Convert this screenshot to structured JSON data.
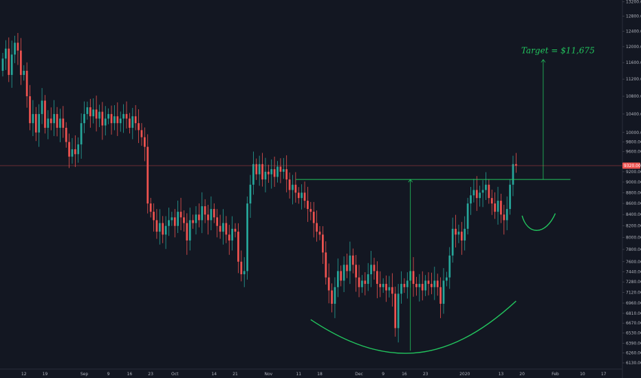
{
  "chart_data": {
    "type": "candlestick",
    "title": "",
    "xlabel": "",
    "ylabel": "",
    "ylim": [
      6050,
      13250
    ],
    "y_scale": "log",
    "grid": false,
    "legend": "none",
    "colors": {
      "up": "#26a69a",
      "down": "#ef5350",
      "annotation": "#22c55e",
      "background": "#131722",
      "text": "#b2b5be"
    },
    "y_ticks": [
      "13200.00",
      "12800.00",
      "12400.00",
      "12000.00",
      "11600.00",
      "11200.00",
      "10800.00",
      "10400.00",
      "10000.00",
      "9800.00",
      "9600.00",
      "9200.00",
      "9000.00",
      "8800.00",
      "8600.00",
      "8400.00",
      "8200.00",
      "8000.00",
      "7800.00",
      "7600.00",
      "7440.00",
      "7280.00",
      "7120.00",
      "6960.00",
      "6810.00",
      "6670.00",
      "6530.00",
      "6390.00",
      "6260.00",
      "6130.00"
    ],
    "x_ticks": [
      "12",
      "19",
      "Sep",
      "9",
      "16",
      "23",
      "Oct",
      "14",
      "21",
      "Nov",
      "11",
      "18",
      "Dec",
      "9",
      "16",
      "23",
      "2020",
      "13",
      "20",
      "Feb",
      "10",
      "17"
    ],
    "x_tick_days": [
      0,
      7,
      20,
      28,
      35,
      42,
      50,
      63,
      70,
      81,
      91,
      98,
      111,
      119,
      126,
      133,
      146,
      158,
      165,
      176,
      185,
      192
    ],
    "last_price": {
      "label": "9320.00",
      "value": 9320
    },
    "annotations": {
      "target_label": "Target = $11,675",
      "target_value": 11675,
      "neckline": 9050,
      "cup_bottom": 6290,
      "handle_bottom": 8150,
      "cup_range_days": [
        95,
        163
      ],
      "handle_range_days": [
        165,
        176
      ],
      "neckline_days": [
        90,
        181
      ],
      "cup_measure_day": 128,
      "target_measure_day": 172
    },
    "candles": [
      {
        "day": -7,
        "open": 11400,
        "close": 11700
      },
      {
        "day": -6,
        "open": 11700,
        "close": 11950
      },
      {
        "day": -5,
        "open": 11950,
        "close": 11300
      },
      {
        "day": -4,
        "open": 11300,
        "close": 11800
      },
      {
        "day": -3,
        "open": 11800,
        "close": 12100
      },
      {
        "day": -2,
        "open": 12100,
        "close": 11900
      },
      {
        "day": -1,
        "open": 11900,
        "close": 11300
      },
      {
        "day": 0,
        "open": 11300,
        "close": 11400
      },
      {
        "day": 1,
        "open": 11400,
        "close": 10800
      },
      {
        "day": 2,
        "open": 10800,
        "close": 10200
      },
      {
        "day": 3,
        "open": 10200,
        "close": 10400
      },
      {
        "day": 4,
        "open": 10400,
        "close": 10000
      },
      {
        "day": 5,
        "open": 10000,
        "close": 10400
      },
      {
        "day": 6,
        "open": 10400,
        "close": 10700
      },
      {
        "day": 7,
        "open": 10700,
        "close": 10100
      },
      {
        "day": 8,
        "open": 10100,
        "close": 10300
      },
      {
        "day": 9,
        "open": 10300,
        "close": 10200
      },
      {
        "day": 10,
        "open": 10200,
        "close": 10400
      },
      {
        "day": 11,
        "open": 10400,
        "close": 10100
      },
      {
        "day": 12,
        "open": 10100,
        "close": 10300
      },
      {
        "day": 13,
        "open": 10300,
        "close": 10100
      },
      {
        "day": 14,
        "open": 10100,
        "close": 9800
      },
      {
        "day": 15,
        "open": 9800,
        "close": 9500
      },
      {
        "day": 16,
        "open": 9500,
        "close": 9650
      },
      {
        "day": 17,
        "open": 9650,
        "close": 9550
      },
      {
        "day": 18,
        "open": 9550,
        "close": 9750
      },
      {
        "day": 19,
        "open": 9750,
        "close": 10200
      },
      {
        "day": 20,
        "open": 10200,
        "close": 10400
      },
      {
        "day": 21,
        "open": 10400,
        "close": 10550
      },
      {
        "day": 22,
        "open": 10550,
        "close": 10350
      },
      {
        "day": 23,
        "open": 10350,
        "close": 10500
      },
      {
        "day": 24,
        "open": 10500,
        "close": 10300
      },
      {
        "day": 25,
        "open": 10300,
        "close": 10450
      },
      {
        "day": 26,
        "open": 10450,
        "close": 10150
      },
      {
        "day": 27,
        "open": 10150,
        "close": 10300
      },
      {
        "day": 28,
        "open": 10300,
        "close": 10400
      },
      {
        "day": 29,
        "open": 10400,
        "close": 10200
      },
      {
        "day": 30,
        "open": 10200,
        "close": 10350
      },
      {
        "day": 31,
        "open": 10350,
        "close": 10200
      },
      {
        "day": 32,
        "open": 10200,
        "close": 10300
      },
      {
        "day": 33,
        "open": 10300,
        "close": 10400
      },
      {
        "day": 34,
        "open": 10400,
        "close": 10300
      },
      {
        "day": 35,
        "open": 10300,
        "close": 10100
      },
      {
        "day": 36,
        "open": 10100,
        "close": 10350
      },
      {
        "day": 37,
        "open": 10350,
        "close": 10200
      },
      {
        "day": 38,
        "open": 10200,
        "close": 10050
      },
      {
        "day": 39,
        "open": 10050,
        "close": 9900
      },
      {
        "day": 40,
        "open": 9900,
        "close": 9700
      },
      {
        "day": 41,
        "open": 9700,
        "close": 8600
      },
      {
        "day": 42,
        "open": 8600,
        "close": 8450
      },
      {
        "day": 43,
        "open": 8450,
        "close": 8300
      },
      {
        "day": 44,
        "open": 8300,
        "close": 8100
      },
      {
        "day": 45,
        "open": 8100,
        "close": 8250
      },
      {
        "day": 46,
        "open": 8250,
        "close": 8050
      },
      {
        "day": 47,
        "open": 8050,
        "close": 8200
      },
      {
        "day": 48,
        "open": 8200,
        "close": 8300
      },
      {
        "day": 49,
        "open": 8300,
        "close": 8350
      },
      {
        "day": 50,
        "open": 8350,
        "close": 8200
      },
      {
        "day": 51,
        "open": 8200,
        "close": 8450
      },
      {
        "day": 52,
        "open": 8450,
        "close": 8350
      },
      {
        "day": 53,
        "open": 8350,
        "close": 8250
      },
      {
        "day": 54,
        "open": 8250,
        "close": 7950
      },
      {
        "day": 55,
        "open": 7950,
        "close": 8300
      },
      {
        "day": 56,
        "open": 8300,
        "close": 8250
      },
      {
        "day": 57,
        "open": 8250,
        "close": 8400
      },
      {
        "day": 58,
        "open": 8400,
        "close": 8300
      },
      {
        "day": 59,
        "open": 8300,
        "close": 8550
      },
      {
        "day": 60,
        "open": 8550,
        "close": 8400
      },
      {
        "day": 61,
        "open": 8400,
        "close": 8300
      },
      {
        "day": 62,
        "open": 8300,
        "close": 8500
      },
      {
        "day": 63,
        "open": 8500,
        "close": 8350
      },
      {
        "day": 64,
        "open": 8350,
        "close": 8200
      },
      {
        "day": 65,
        "open": 8200,
        "close": 8100
      },
      {
        "day": 66,
        "open": 8100,
        "close": 8250
      },
      {
        "day": 67,
        "open": 8250,
        "close": 8050
      },
      {
        "day": 68,
        "open": 8050,
        "close": 7950
      },
      {
        "day": 69,
        "open": 7950,
        "close": 8150
      },
      {
        "day": 70,
        "open": 8150,
        "close": 8100
      },
      {
        "day": 71,
        "open": 8100,
        "close": 7600
      },
      {
        "day": 72,
        "open": 7600,
        "close": 7400
      },
      {
        "day": 73,
        "open": 7400,
        "close": 7450
      },
      {
        "day": 74,
        "open": 7450,
        "close": 8600
      },
      {
        "day": 75,
        "open": 8600,
        "close": 8950
      },
      {
        "day": 76,
        "open": 8950,
        "close": 9350
      },
      {
        "day": 77,
        "open": 9350,
        "close": 9150
      },
      {
        "day": 78,
        "open": 9150,
        "close": 9350
      },
      {
        "day": 79,
        "open": 9350,
        "close": 9050
      },
      {
        "day": 80,
        "open": 9050,
        "close": 9200
      },
      {
        "day": 81,
        "open": 9200,
        "close": 9150
      },
      {
        "day": 82,
        "open": 9150,
        "close": 9250
      },
      {
        "day": 83,
        "open": 9250,
        "close": 9100
      },
      {
        "day": 84,
        "open": 9100,
        "close": 9300
      },
      {
        "day": 85,
        "open": 9300,
        "close": 9200
      },
      {
        "day": 86,
        "open": 9200,
        "close": 9250
      },
      {
        "day": 87,
        "open": 9250,
        "close": 9050
      },
      {
        "day": 88,
        "open": 9050,
        "close": 8850
      },
      {
        "day": 89,
        "open": 8850,
        "close": 8950
      },
      {
        "day": 90,
        "open": 8950,
        "close": 8800
      },
      {
        "day": 91,
        "open": 8800,
        "close": 8700
      },
      {
        "day": 92,
        "open": 8700,
        "close": 8800
      },
      {
        "day": 93,
        "open": 8800,
        "close": 8650
      },
      {
        "day": 94,
        "open": 8650,
        "close": 8500
      },
      {
        "day": 95,
        "open": 8500,
        "close": 8450
      },
      {
        "day": 96,
        "open": 8450,
        "close": 8250
      },
      {
        "day": 97,
        "open": 8250,
        "close": 8100
      },
      {
        "day": 98,
        "open": 8100,
        "close": 8050
      },
      {
        "day": 99,
        "open": 8050,
        "close": 7750
      },
      {
        "day": 100,
        "open": 7750,
        "close": 7350
      },
      {
        "day": 101,
        "open": 7350,
        "close": 7150
      },
      {
        "day": 102,
        "open": 7150,
        "close": 6950
      },
      {
        "day": 103,
        "open": 6950,
        "close": 7200
      },
      {
        "day": 104,
        "open": 7200,
        "close": 7450
      },
      {
        "day": 105,
        "open": 7450,
        "close": 7300
      },
      {
        "day": 106,
        "open": 7300,
        "close": 7550
      },
      {
        "day": 107,
        "open": 7550,
        "close": 7450
      },
      {
        "day": 108,
        "open": 7450,
        "close": 7700
      },
      {
        "day": 109,
        "open": 7700,
        "close": 7550
      },
      {
        "day": 110,
        "open": 7550,
        "close": 7350
      },
      {
        "day": 111,
        "open": 7350,
        "close": 7200
      },
      {
        "day": 112,
        "open": 7200,
        "close": 7300
      },
      {
        "day": 113,
        "open": 7300,
        "close": 7250
      },
      {
        "day": 114,
        "open": 7250,
        "close": 7400
      },
      {
        "day": 115,
        "open": 7400,
        "close": 7550
      },
      {
        "day": 116,
        "open": 7550,
        "close": 7450
      },
      {
        "day": 117,
        "open": 7450,
        "close": 7250
      },
      {
        "day": 118,
        "open": 7250,
        "close": 7200
      },
      {
        "day": 119,
        "open": 7200,
        "close": 7250
      },
      {
        "day": 120,
        "open": 7250,
        "close": 7150
      },
      {
        "day": 121,
        "open": 7150,
        "close": 7200
      },
      {
        "day": 122,
        "open": 7200,
        "close": 7100
      },
      {
        "day": 123,
        "open": 7100,
        "close": 6600
      },
      {
        "day": 124,
        "open": 6600,
        "close": 7100
      },
      {
        "day": 125,
        "open": 7100,
        "close": 7250
      },
      {
        "day": 126,
        "open": 7250,
        "close": 7200
      },
      {
        "day": 127,
        "open": 7200,
        "close": 7300
      },
      {
        "day": 128,
        "open": 7300,
        "close": 7450
      },
      {
        "day": 129,
        "open": 7450,
        "close": 7250
      },
      {
        "day": 130,
        "open": 7250,
        "close": 7200
      },
      {
        "day": 131,
        "open": 7200,
        "close": 7250
      },
      {
        "day": 132,
        "open": 7250,
        "close": 7150
      },
      {
        "day": 133,
        "open": 7150,
        "close": 7300
      },
      {
        "day": 134,
        "open": 7300,
        "close": 7250
      },
      {
        "day": 135,
        "open": 7250,
        "close": 7200
      },
      {
        "day": 136,
        "open": 7200,
        "close": 7300
      },
      {
        "day": 137,
        "open": 7300,
        "close": 7200
      },
      {
        "day": 138,
        "open": 7200,
        "close": 6950
      },
      {
        "day": 139,
        "open": 6950,
        "close": 7300
      },
      {
        "day": 140,
        "open": 7300,
        "close": 7350
      },
      {
        "day": 141,
        "open": 7350,
        "close": 7700
      },
      {
        "day": 142,
        "open": 7700,
        "close": 8150
      },
      {
        "day": 143,
        "open": 8150,
        "close": 8050
      },
      {
        "day": 144,
        "open": 8050,
        "close": 8100
      },
      {
        "day": 145,
        "open": 8100,
        "close": 7950
      },
      {
        "day": 146,
        "open": 7950,
        "close": 8150
      },
      {
        "day": 147,
        "open": 8150,
        "close": 8600
      },
      {
        "day": 148,
        "open": 8600,
        "close": 8750
      },
      {
        "day": 149,
        "open": 8750,
        "close": 8850
      },
      {
        "day": 150,
        "open": 8850,
        "close": 8700
      },
      {
        "day": 151,
        "open": 8700,
        "close": 8800
      },
      {
        "day": 152,
        "open": 8800,
        "close": 8850
      },
      {
        "day": 153,
        "open": 8850,
        "close": 8950
      },
      {
        "day": 154,
        "open": 8950,
        "close": 8700
      },
      {
        "day": 155,
        "open": 8700,
        "close": 8600
      },
      {
        "day": 156,
        "open": 8600,
        "close": 8450
      },
      {
        "day": 157,
        "open": 8450,
        "close": 8650
      },
      {
        "day": 158,
        "open": 8650,
        "close": 8400
      },
      {
        "day": 159,
        "open": 8400,
        "close": 8300
      },
      {
        "day": 160,
        "open": 8300,
        "close": 8500
      },
      {
        "day": 161,
        "open": 8500,
        "close": 8950
      },
      {
        "day": 162,
        "open": 8950,
        "close": 9350
      },
      {
        "day": 163,
        "open": 9350,
        "close": 9320
      }
    ]
  }
}
